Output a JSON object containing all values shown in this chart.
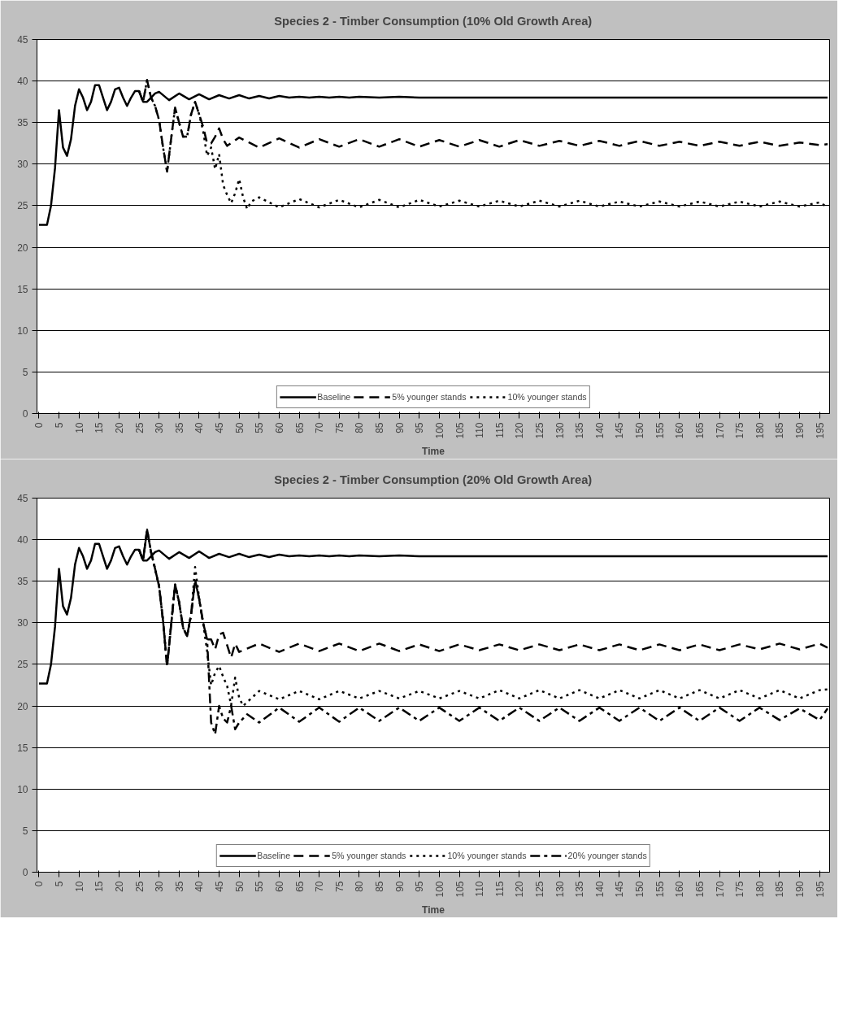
{
  "chart_data": [
    {
      "type": "line",
      "title": "Species 2 - Timber Consumption (10% Old Growth Area)",
      "xlabel": "Time",
      "xlim": [
        -0.5,
        197.5
      ],
      "ylim": [
        0,
        45
      ],
      "xticks": [
        0,
        5,
        10,
        15,
        20,
        25,
        30,
        35,
        40,
        45,
        50,
        55,
        60,
        65,
        70,
        75,
        80,
        85,
        90,
        95,
        100,
        105,
        110,
        115,
        120,
        125,
        130,
        135,
        140,
        145,
        150,
        155,
        160,
        165,
        170,
        175,
        180,
        185,
        190,
        195
      ],
      "yticks": [
        0,
        5,
        10,
        15,
        20,
        25,
        30,
        35,
        40,
        45
      ],
      "grid": "y",
      "legend": "bottom",
      "series": [
        {
          "name": "Baseline",
          "color": "#000000",
          "line_style": "solid",
          "x": [
            0,
            1,
            2,
            3,
            4,
            5,
            6,
            7,
            8,
            9,
            10,
            11,
            12,
            13,
            14,
            15,
            16,
            17,
            18,
            19,
            20,
            21,
            22,
            23,
            24,
            25,
            26,
            27,
            28,
            29,
            30,
            32.5,
            35,
            37.5,
            40,
            42.5,
            45,
            47.5,
            50,
            52.5,
            55,
            57.5,
            60,
            62.5,
            65,
            67.5,
            70,
            72.5,
            75,
            77.5,
            80,
            85,
            90,
            95,
            197
          ],
          "values": [
            22.7,
            22.7,
            22.7,
            25,
            29.5,
            36.5,
            32,
            31,
            33,
            37,
            39,
            38,
            36.5,
            37.5,
            39.5,
            39.5,
            38,
            36.5,
            37.5,
            39,
            39.2,
            38,
            37,
            38,
            38.8,
            38.8,
            37.5,
            37.5,
            38,
            38.5,
            38.7,
            37.7,
            38.5,
            37.8,
            38.4,
            37.8,
            38.3,
            37.9,
            38.3,
            37.9,
            38.2,
            37.9,
            38.2,
            38,
            38.1,
            38,
            38.1,
            38,
            38.1,
            38,
            38.1,
            38,
            38.1,
            38,
            38
          ]
        },
        {
          "name": "5% younger stands",
          "color": "#000000",
          "line_style": "dashed",
          "x": [
            25,
            26,
            27,
            28,
            29,
            30,
            31,
            32,
            33,
            34,
            35,
            36,
            37,
            38,
            39,
            40,
            41,
            42,
            43,
            44,
            45,
            46,
            47,
            50,
            55,
            60,
            65,
            70,
            75,
            80,
            85,
            90,
            95,
            100,
            105,
            110,
            115,
            120,
            125,
            130,
            135,
            140,
            145,
            150,
            155,
            160,
            165,
            170,
            175,
            180,
            185,
            190,
            195,
            197
          ],
          "values": [
            38.8,
            37.5,
            40.1,
            38,
            37,
            35.3,
            32,
            29.1,
            33,
            36.8,
            35,
            33.3,
            33.3,
            36,
            37.5,
            36,
            34.5,
            32.5,
            32.5,
            33.3,
            34.3,
            33,
            32.2,
            33.2,
            32,
            33.1,
            32,
            33,
            32.1,
            33,
            32.1,
            33,
            32.1,
            32.9,
            32.1,
            32.9,
            32.1,
            32.9,
            32.2,
            32.8,
            32.2,
            32.8,
            32.2,
            32.8,
            32.2,
            32.7,
            32.2,
            32.7,
            32.2,
            32.7,
            32.2,
            32.6,
            32.3,
            32.4
          ]
        },
        {
          "name": "10% younger stands",
          "color": "#000000",
          "line_style": "dotted",
          "x": [
            25,
            26,
            27,
            28,
            29,
            30,
            31,
            32,
            33,
            34,
            35,
            36,
            37,
            38,
            39,
            40,
            41,
            42,
            43,
            44,
            45,
            46,
            47,
            48,
            49,
            50,
            51,
            52,
            53,
            55,
            60,
            65,
            70,
            75,
            80,
            85,
            90,
            95,
            100,
            105,
            110,
            115,
            120,
            125,
            130,
            135,
            140,
            145,
            150,
            155,
            160,
            165,
            170,
            175,
            180,
            185,
            190,
            195,
            197
          ],
          "values": [
            38.8,
            37.5,
            40.1,
            38,
            37,
            35.3,
            32,
            29.1,
            33,
            36.8,
            35,
            33.3,
            33.3,
            36,
            37.5,
            36,
            34,
            31,
            32,
            29.4,
            31.2,
            27.5,
            26.3,
            25.3,
            26.5,
            28.2,
            26,
            24.6,
            25.5,
            26,
            24.8,
            25.8,
            24.8,
            25.7,
            24.8,
            25.7,
            24.8,
            25.7,
            24.9,
            25.6,
            24.9,
            25.6,
            24.9,
            25.6,
            24.9,
            25.6,
            24.9,
            25.5,
            24.9,
            25.5,
            24.9,
            25.5,
            24.9,
            25.5,
            24.9,
            25.5,
            24.9,
            25.4,
            24.8
          ]
        }
      ]
    },
    {
      "type": "line",
      "title": "Species 2 - Timber Consumption (20% Old Growth Area)",
      "xlabel": "Time",
      "xlim": [
        -0.5,
        197.5
      ],
      "ylim": [
        0,
        45
      ],
      "xticks": [
        0,
        5,
        10,
        15,
        20,
        25,
        30,
        35,
        40,
        45,
        50,
        55,
        60,
        65,
        70,
        75,
        80,
        85,
        90,
        95,
        100,
        105,
        110,
        115,
        120,
        125,
        130,
        135,
        140,
        145,
        150,
        155,
        160,
        165,
        170,
        175,
        180,
        185,
        190,
        195
      ],
      "yticks": [
        0,
        5,
        10,
        15,
        20,
        25,
        30,
        35,
        40,
        45
      ],
      "grid": "y",
      "legend": "bottom",
      "series": [
        {
          "name": "Baseline",
          "color": "#000000",
          "line_style": "solid",
          "x": [
            0,
            1,
            2,
            3,
            4,
            5,
            6,
            7,
            8,
            9,
            10,
            11,
            12,
            13,
            14,
            15,
            16,
            17,
            18,
            19,
            20,
            21,
            22,
            23,
            24,
            25,
            26,
            27,
            28,
            29,
            30,
            32.5,
            35,
            37.5,
            40,
            42.5,
            45,
            47.5,
            50,
            52.5,
            55,
            57.5,
            60,
            62.5,
            65,
            67.5,
            70,
            72.5,
            75,
            77.5,
            80,
            85,
            90,
            95,
            197
          ],
          "values": [
            22.7,
            22.7,
            22.7,
            25,
            29.5,
            36.5,
            32,
            31,
            33,
            37,
            39,
            38,
            36.5,
            37.5,
            39.5,
            39.5,
            38,
            36.5,
            37.5,
            39,
            39.2,
            38,
            37,
            38,
            38.8,
            38.8,
            37.5,
            37.5,
            38,
            38.5,
            38.7,
            37.7,
            38.5,
            37.8,
            38.6,
            37.8,
            38.3,
            37.9,
            38.3,
            37.9,
            38.2,
            37.9,
            38.2,
            38,
            38.1,
            38,
            38.1,
            38,
            38.1,
            38,
            38.1,
            38,
            38.1,
            38,
            38
          ]
        },
        {
          "name": "5% younger stands",
          "color": "#000000",
          "line_style": "dashed",
          "x": [
            25,
            26,
            27,
            28,
            29,
            30,
            31,
            32,
            33,
            34,
            35,
            36,
            37,
            38,
            39,
            40,
            41,
            42,
            43,
            44,
            45,
            46,
            47,
            48,
            49,
            50,
            55,
            60,
            65,
            70,
            75,
            80,
            85,
            90,
            95,
            100,
            105,
            110,
            115,
            120,
            125,
            130,
            135,
            140,
            145,
            150,
            155,
            160,
            165,
            170,
            175,
            180,
            185,
            190,
            195,
            197
          ],
          "values": [
            38.8,
            37.5,
            41.2,
            38.5,
            36.5,
            34.4,
            30.2,
            24.8,
            29.7,
            34.6,
            32.5,
            29.4,
            28.4,
            31,
            35.1,
            32.9,
            30,
            28,
            28,
            26.8,
            28.6,
            28.8,
            27.3,
            25.8,
            27.5,
            26.5,
            27.5,
            26.5,
            27.5,
            26.6,
            27.5,
            26.6,
            27.5,
            26.6,
            27.4,
            26.6,
            27.4,
            26.7,
            27.4,
            26.7,
            27.4,
            26.7,
            27.4,
            26.7,
            27.4,
            26.7,
            27.4,
            26.7,
            27.4,
            26.7,
            27.4,
            26.8,
            27.5,
            26.8,
            27.5,
            27
          ]
        },
        {
          "name": "10% younger stands",
          "color": "#000000",
          "line_style": "dotted",
          "x": [
            25,
            26,
            27,
            28,
            29,
            30,
            31,
            32,
            33,
            34,
            35,
            36,
            37,
            38,
            39,
            40,
            41,
            42,
            43,
            44,
            45,
            46,
            47,
            48,
            49,
            50,
            51,
            55,
            60,
            65,
            70,
            75,
            80,
            85,
            90,
            95,
            100,
            105,
            110,
            115,
            120,
            125,
            130,
            135,
            140,
            145,
            150,
            155,
            160,
            165,
            170,
            175,
            180,
            185,
            190,
            195,
            197
          ],
          "values": [
            38.8,
            37.5,
            41.2,
            38.5,
            36.5,
            34.4,
            30.2,
            24.8,
            29.7,
            34.6,
            32.5,
            29.4,
            28.4,
            31,
            36.7,
            33,
            30,
            26.6,
            22.5,
            24,
            24.8,
            23.5,
            22.4,
            20.1,
            23.4,
            21,
            20,
            21.8,
            20.8,
            21.8,
            20.8,
            21.8,
            20.9,
            21.8,
            20.9,
            21.8,
            20.9,
            21.8,
            20.9,
            21.9,
            20.9,
            21.9,
            20.9,
            21.9,
            20.9,
            21.9,
            20.9,
            21.9,
            20.9,
            21.9,
            20.9,
            21.9,
            20.9,
            21.9,
            20.9,
            21.9,
            22
          ]
        },
        {
          "name": "20% younger stands",
          "color": "#000000",
          "line_style": "dashdot",
          "x": [
            25,
            26,
            27,
            28,
            29,
            30,
            31,
            32,
            33,
            34,
            35,
            36,
            37,
            38,
            39,
            40,
            41,
            42,
            43,
            44,
            45,
            46,
            47,
            48,
            49,
            50,
            52,
            55,
            60,
            65,
            70,
            75,
            80,
            85,
            90,
            95,
            100,
            105,
            110,
            115,
            120,
            125,
            130,
            135,
            140,
            145,
            150,
            155,
            160,
            165,
            170,
            175,
            180,
            185,
            190,
            195,
            197
          ],
          "values": [
            38.8,
            37.5,
            41.2,
            38.5,
            36.5,
            34.4,
            30.2,
            24.8,
            29.7,
            34.6,
            32.5,
            29.4,
            28.4,
            31,
            35.1,
            32.9,
            30,
            28,
            18,
            16.6,
            20,
            18.5,
            18,
            20,
            17.2,
            18,
            19,
            18,
            19.8,
            18.1,
            19.8,
            18.1,
            19.8,
            18.2,
            19.8,
            18.2,
            19.8,
            18.2,
            19.8,
            18.2,
            19.8,
            18.2,
            19.8,
            18.2,
            19.8,
            18.2,
            19.8,
            18.2,
            19.8,
            18.2,
            19.8,
            18.2,
            19.8,
            18.3,
            19.7,
            18.3,
            19.7
          ]
        }
      ]
    }
  ]
}
